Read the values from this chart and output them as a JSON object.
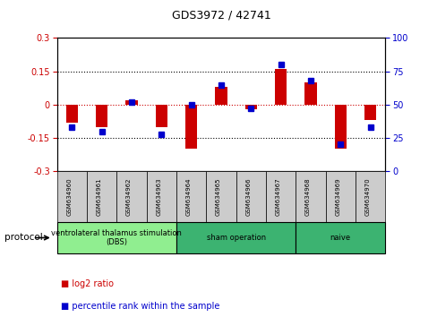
{
  "title": "GDS3972 / 42741",
  "samples": [
    "GSM634960",
    "GSM634961",
    "GSM634962",
    "GSM634963",
    "GSM634964",
    "GSM634965",
    "GSM634966",
    "GSM634967",
    "GSM634968",
    "GSM634969",
    "GSM634970"
  ],
  "log2_ratio": [
    -0.08,
    -0.1,
    0.02,
    -0.1,
    -0.2,
    0.08,
    -0.02,
    0.16,
    0.1,
    -0.2,
    -0.07
  ],
  "percentile_rank": [
    33,
    30,
    52,
    28,
    50,
    65,
    47,
    80,
    68,
    20,
    33
  ],
  "groups": [
    {
      "label": "ventrolateral thalamus stimulation\n(DBS)",
      "start": 0,
      "end": 3,
      "color": "#90EE90"
    },
    {
      "label": "sham operation",
      "start": 4,
      "end": 7,
      "color": "#3CB371"
    },
    {
      "label": "naive",
      "start": 8,
      "end": 10,
      "color": "#3CB371"
    }
  ],
  "bar_color": "#CC0000",
  "dot_color": "#0000CC",
  "ylim_left": [
    -0.3,
    0.3
  ],
  "ylim_right": [
    0,
    100
  ],
  "yticks_left": [
    -0.3,
    -0.15,
    0,
    0.15,
    0.3
  ],
  "yticks_right": [
    0,
    25,
    50,
    75,
    100
  ],
  "hlines": [
    -0.15,
    0,
    0.15
  ],
  "tick_label_color_left": "#CC0000",
  "tick_label_color_right": "#0000CC",
  "sample_box_color": "#cccccc"
}
